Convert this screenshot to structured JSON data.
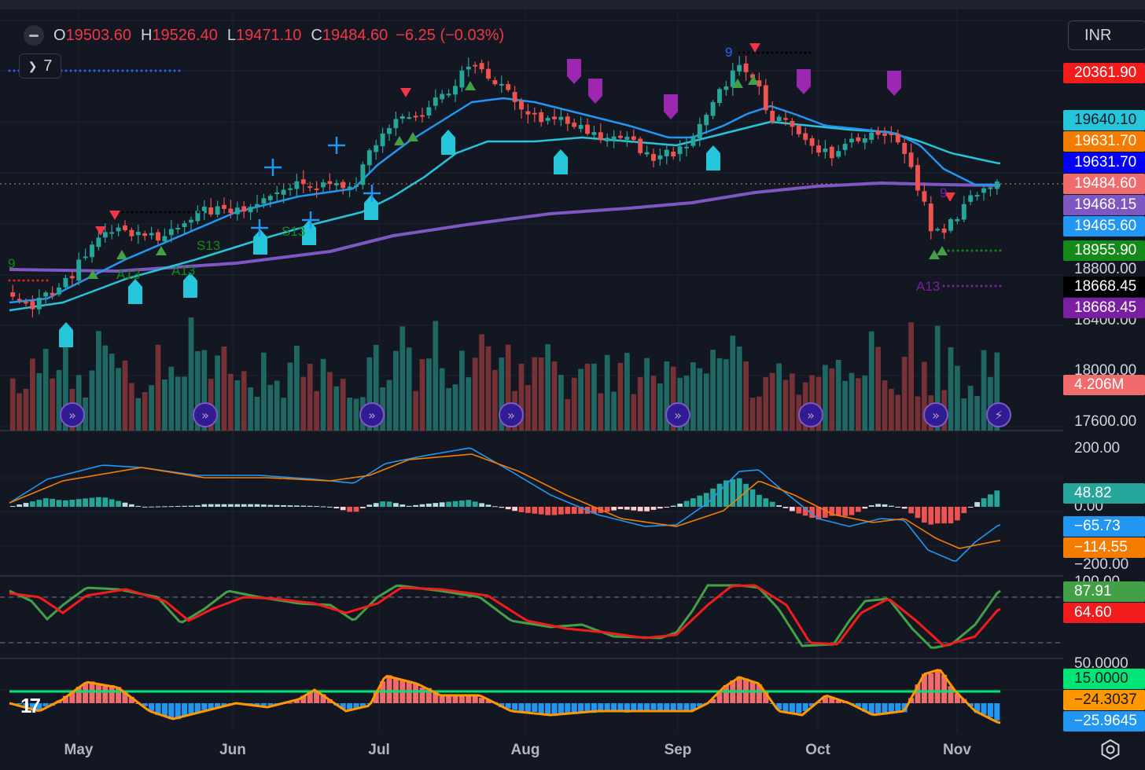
{
  "legend": {
    "o_label": "O",
    "o": "19503.60",
    "h_label": "H",
    "h": "19526.40",
    "l_label": "L",
    "l": "19471.10",
    "c_label": "C",
    "c": "19484.60",
    "change": "−6.25 (−0.03%)"
  },
  "indicator_count": "7",
  "currency": "INR",
  "price_labels": [
    {
      "text": "20361.90",
      "bg": "#f21c1c",
      "fg": "#ffffff",
      "top": 80
    },
    {
      "text": "19640.10",
      "bg": "#26c6da",
      "fg": "#131722",
      "top": 140
    },
    {
      "text": "19631.70",
      "bg": "#f57c00",
      "fg": "#ffffff",
      "top": 167
    },
    {
      "text": "19631.70",
      "bg": "#0000ff",
      "fg": "#ffffff",
      "top": 194
    },
    {
      "text": "19484.60",
      "bg": "#f06b6b",
      "fg": "#ffffff",
      "top": 221
    },
    {
      "text": "19468.15",
      "bg": "#7e57c2",
      "fg": "#ffffff",
      "top": 248
    },
    {
      "text": "19465.60",
      "bg": "#2196f3",
      "fg": "#ffffff",
      "top": 275
    },
    {
      "text": "18955.90",
      "bg": "#138a1a",
      "fg": "#ffffff",
      "top": 306
    },
    {
      "text": "18668.45",
      "bg": "#000000",
      "fg": "#ffffff",
      "top": 352
    },
    {
      "text": "18668.45",
      "bg": "#7b1fa2",
      "fg": "#ffffff",
      "top": 379
    },
    {
      "text": "4.206M",
      "bg": "#f06b6b",
      "fg": "#ffffff",
      "top": 477
    },
    {
      "text": "48.82",
      "bg": "#26a69a",
      "fg": "#ffffff",
      "top": 615
    },
    {
      "text": "−65.73",
      "bg": "#2196f3",
      "fg": "#ffffff",
      "top": 657
    },
    {
      "text": "−114.55",
      "bg": "#f57c00",
      "fg": "#ffffff",
      "top": 684
    },
    {
      "text": "87.91",
      "bg": "#43a047",
      "fg": "#ffffff",
      "top": 740
    },
    {
      "text": "64.60",
      "bg": "#f21c1c",
      "fg": "#ffffff",
      "top": 767
    },
    {
      "text": "15.0000",
      "bg": "#00e676",
      "fg": "#131722",
      "top": 851
    },
    {
      "text": "−24.3037",
      "bg": "#ff9800",
      "fg": "#131722",
      "top": 878
    },
    {
      "text": "−25.9645",
      "bg": "#2196f3",
      "fg": "#ffffff",
      "top": 905
    }
  ],
  "axis_labels": [
    {
      "text": "18800.00",
      "top": 332
    },
    {
      "text": "18400.00",
      "top": 397
    },
    {
      "text": "18000.00",
      "top": 461
    },
    {
      "text": "17600.00",
      "top": 526
    },
    {
      "text": "200.00",
      "top": 560
    },
    {
      "text": "0.00",
      "top": 634
    },
    {
      "text": "−200.00",
      "top": 708
    },
    {
      "text": "100.00",
      "top": 730
    },
    {
      "text": "50.0000",
      "top": 834
    }
  ],
  "chart_data": {
    "type": "candlestick",
    "months": [
      "May",
      "Jun",
      "Jul",
      "Aug",
      "Sep",
      "Oct",
      "Nov"
    ],
    "annotations": [
      "A13",
      "S13",
      "S13",
      "A13",
      "A13",
      "9",
      "9",
      "9"
    ],
    "price": {
      "last": 19484.6,
      "ma_fast": 19465.6,
      "ma_slow": 19640.1,
      "ma_long": 19468.15,
      "support": 18955.9,
      "target_low": 18668.45,
      "target_high": 20361.9
    },
    "volume_last": "4.206M",
    "macd": {
      "histogram": 48.82,
      "macd": -65.73,
      "signal": -114.55
    },
    "stochastic": {
      "k": 87.91,
      "d": 64.6
    },
    "oscillator": {
      "level": 15.0,
      "line": -24.3037,
      "histogram": -25.9645
    }
  }
}
